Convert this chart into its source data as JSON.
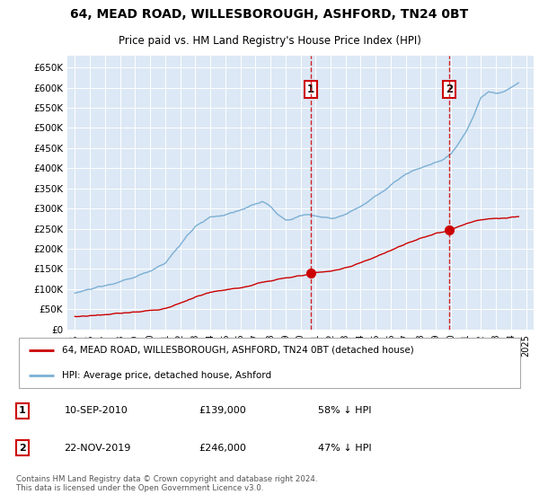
{
  "title": "64, MEAD ROAD, WILLESBOROUGH, ASHFORD, TN24 0BT",
  "subtitle": "Price paid vs. HM Land Registry's House Price Index (HPI)",
  "ylabel_ticks": [
    "£0",
    "£50K",
    "£100K",
    "£150K",
    "£200K",
    "£250K",
    "£300K",
    "£350K",
    "£400K",
    "£450K",
    "£500K",
    "£550K",
    "£600K",
    "£650K"
  ],
  "ytick_values": [
    0,
    50000,
    100000,
    150000,
    200000,
    250000,
    300000,
    350000,
    400000,
    450000,
    500000,
    550000,
    600000,
    650000
  ],
  "xlim_start": 1994.5,
  "xlim_end": 2025.5,
  "ylim_min": 0,
  "ylim_max": 680000,
  "dashed_line_x1": 2010.69,
  "dashed_line_x2": 2019.9,
  "sale1_date": "10-SEP-2010",
  "sale1_price": 139000,
  "sale1_year": 2010.69,
  "sale2_date": "22-NOV-2019",
  "sale2_price": 246000,
  "sale2_year": 2019.9,
  "legend_red_label": "64, MEAD ROAD, WILLESBOROUGH, ASHFORD, TN24 0BT (detached house)",
  "legend_blue_label": "HPI: Average price, detached house, Ashford",
  "footer_text": "Contains HM Land Registry data © Crown copyright and database right 2024.\nThis data is licensed under the Open Government Licence v3.0.",
  "plot_bg_color": "#dce8f5",
  "red_line_color": "#cc0000",
  "blue_line_color": "#7bafd4",
  "marker_color": "#cc0000",
  "grid_color": "#ffffff",
  "border_color": "#aaaaaa"
}
